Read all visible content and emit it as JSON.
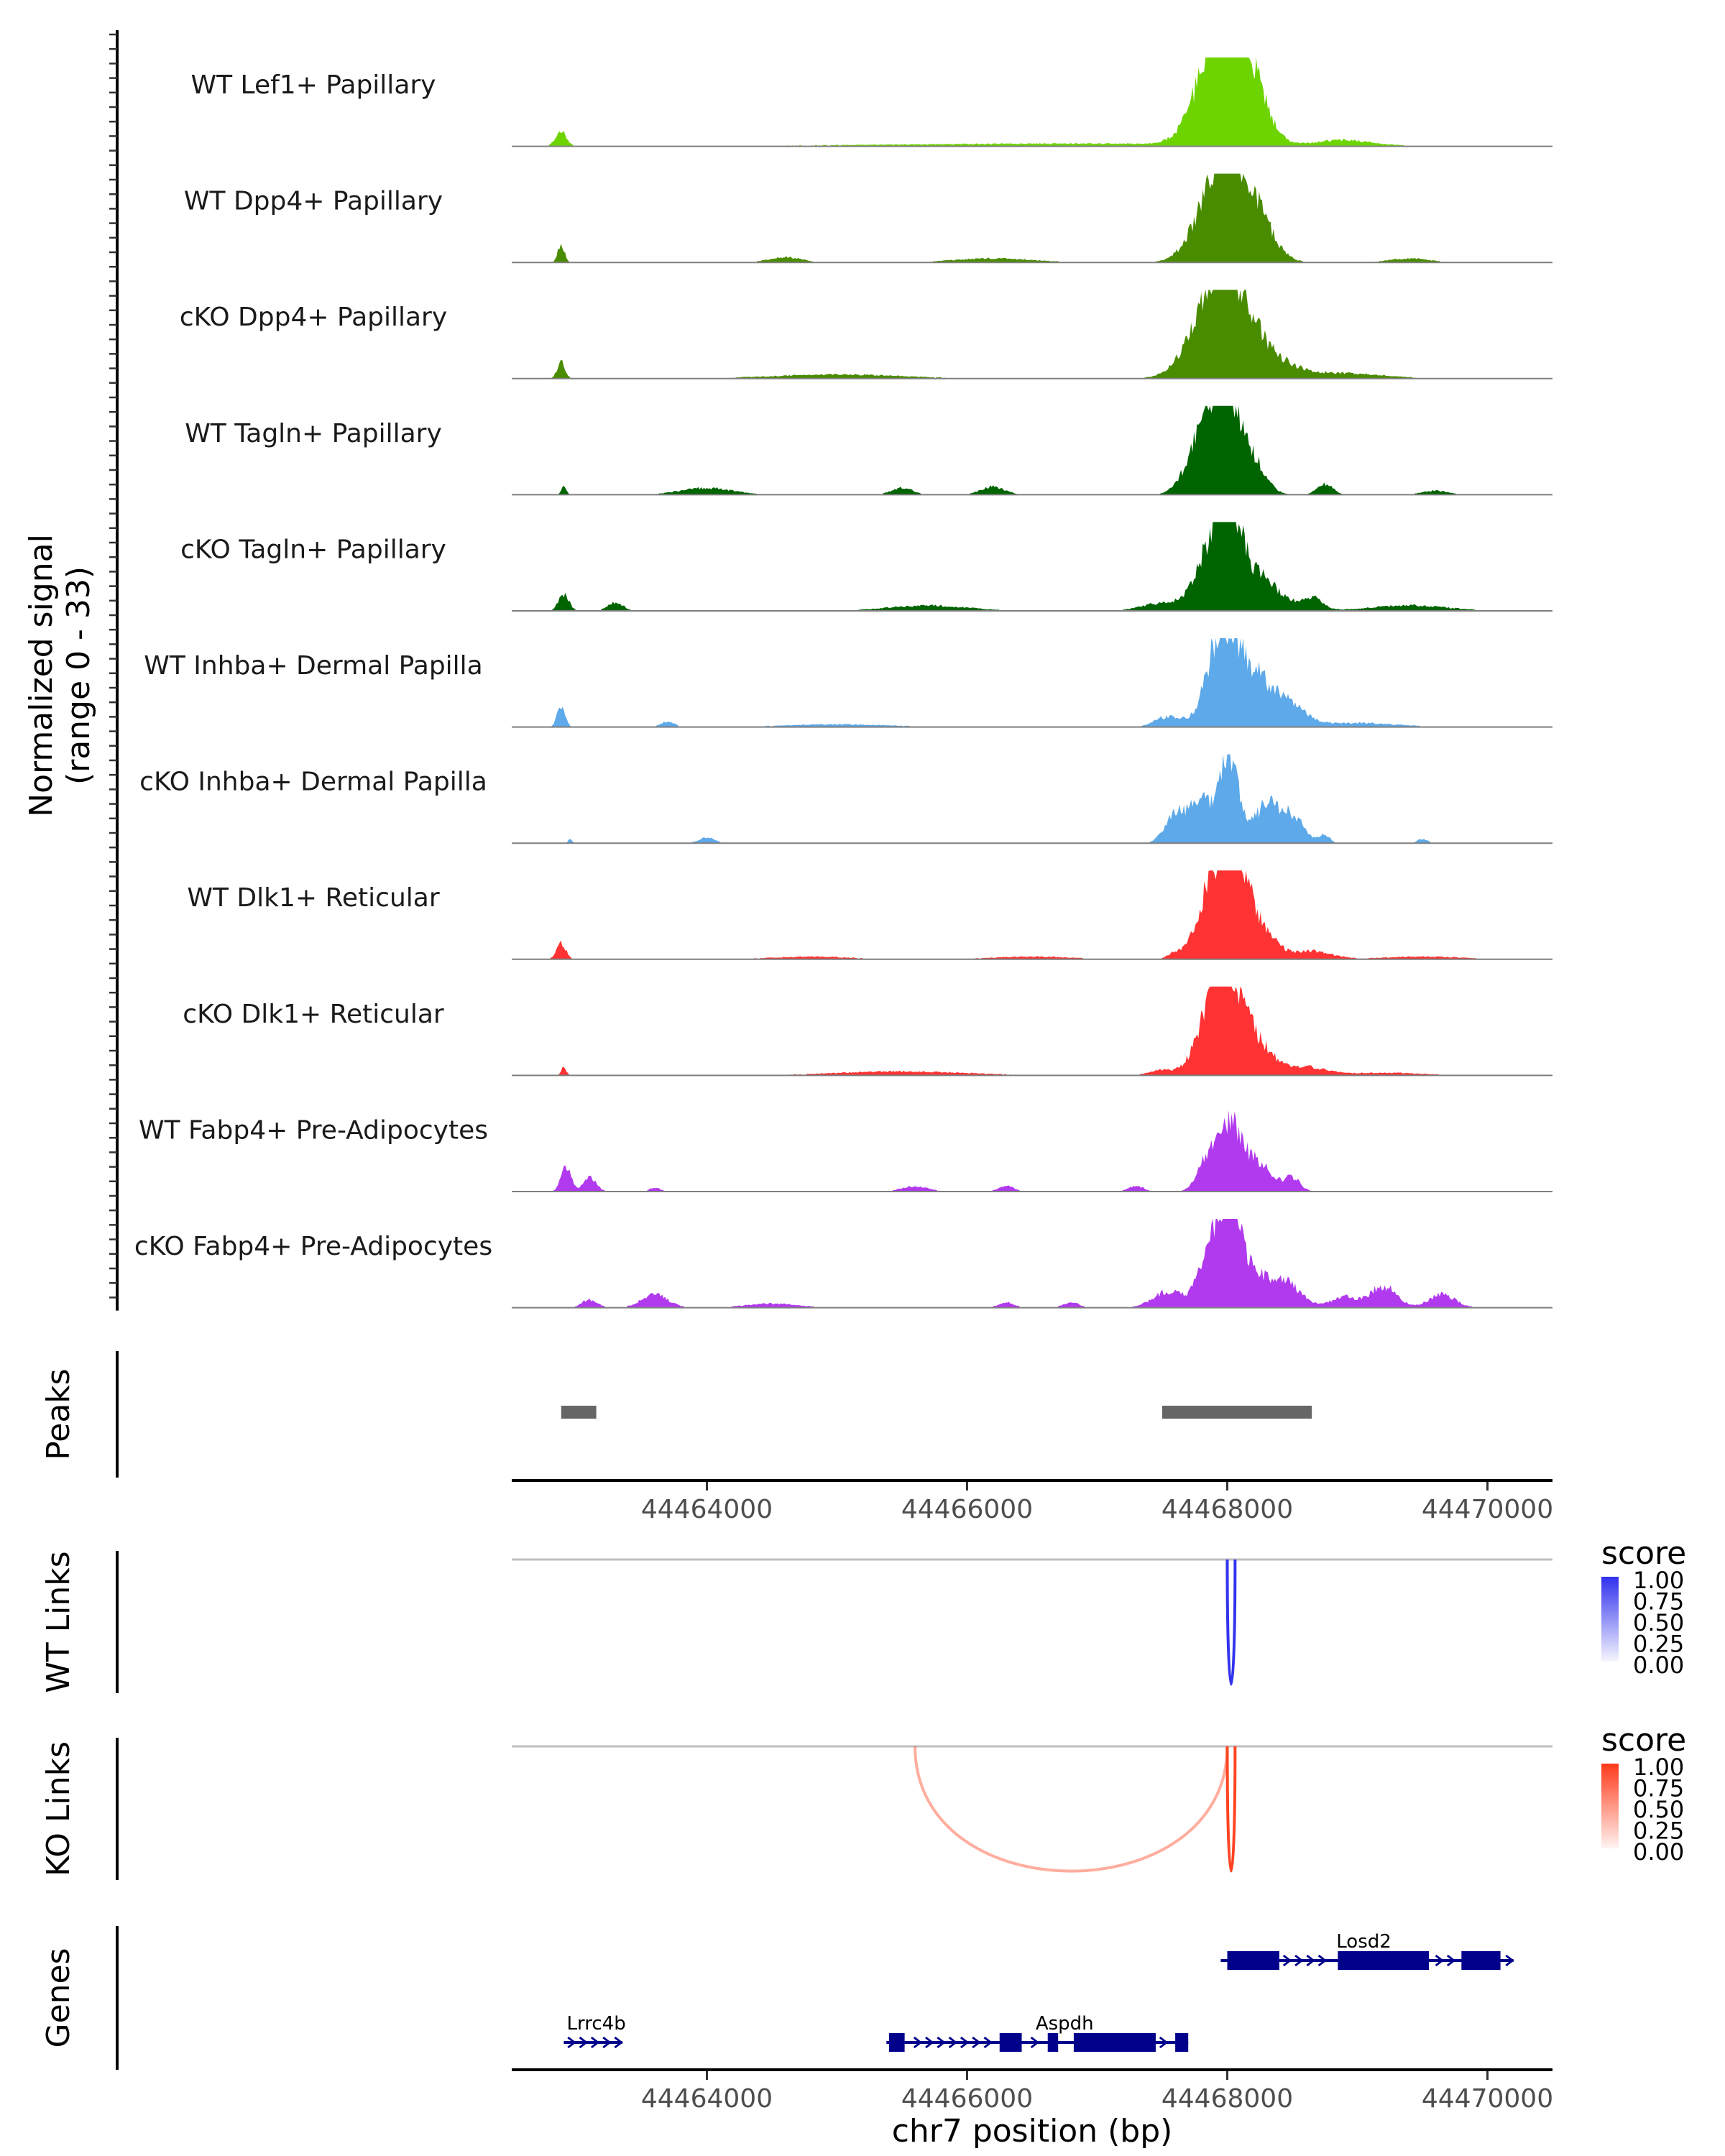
{
  "chart_data": {
    "type": "genome-coverage",
    "ylabel_line1": "Normalized signal",
    "ylabel_line2": "(range 0 - 33)",
    "ylim": [
      0,
      33
    ],
    "xlabel": "chr7 position (bp)",
    "xlim": [
      44462500,
      44470500
    ],
    "xticks": [
      44464000,
      44466000,
      44468000,
      44470000
    ],
    "xtick_labels": [
      "44464000",
      "44466000",
      "44468000",
      "44470000"
    ],
    "tracks": [
      {
        "label": "WT Lef1+ Papillary",
        "color": "#6DD400",
        "peaks": [
          [
            44467920,
            33,
            160
          ],
          [
            44468080,
            26,
            130
          ],
          [
            44468230,
            9,
            120
          ],
          [
            44462880,
            6,
            40
          ],
          [
            44468900,
            2,
            200
          ],
          [
            44466800,
            1,
            1500
          ]
        ]
      },
      {
        "label": "WT Dpp4+ Papillary",
        "color": "#4A8C00",
        "peaks": [
          [
            44468030,
            33,
            150
          ],
          [
            44467860,
            14,
            150
          ],
          [
            44468250,
            10,
            130
          ],
          [
            44462880,
            7,
            25
          ],
          [
            44464600,
            2,
            120
          ],
          [
            44466200,
            1.5,
            300
          ],
          [
            44469400,
            1.5,
            150
          ]
        ]
      },
      {
        "label": "cKO Dpp4+ Papillary",
        "color": "#4A8C00",
        "peaks": [
          [
            44468000,
            33,
            170
          ],
          [
            44467820,
            12,
            170
          ],
          [
            44468300,
            7,
            200
          ],
          [
            44462880,
            6,
            30
          ],
          [
            44468900,
            2,
            300
          ],
          [
            44465000,
            1.5,
            500
          ]
        ]
      },
      {
        "label": "WT Tagln+ Papillary",
        "color": "#006400",
        "peaks": [
          [
            44468000,
            33,
            110
          ],
          [
            44467820,
            22,
            120
          ],
          [
            44468200,
            10,
            100
          ],
          [
            44468750,
            4,
            60
          ],
          [
            44466200,
            3,
            90
          ],
          [
            44464000,
            2.5,
            200
          ],
          [
            44465500,
            2.5,
            80
          ],
          [
            44462900,
            3,
            20
          ],
          [
            44469600,
            1.5,
            100
          ]
        ]
      },
      {
        "label": "cKO Tagln+ Papillary",
        "color": "#006400",
        "peaks": [
          [
            44468010,
            33,
            100
          ],
          [
            44467870,
            18,
            120
          ],
          [
            44468250,
            12,
            150
          ],
          [
            44468650,
            5,
            80
          ],
          [
            44462900,
            6,
            40
          ],
          [
            44467500,
            3,
            150
          ],
          [
            44465700,
            2,
            300
          ],
          [
            44463300,
            3,
            60
          ],
          [
            44469400,
            2,
            300
          ]
        ]
      },
      {
        "label": "WT Inhba+ Dermal Papilla",
        "color": "#5DA9E9",
        "peaks": [
          [
            44467950,
            30,
            110
          ],
          [
            44468150,
            20,
            150
          ],
          [
            44468450,
            8,
            140
          ],
          [
            44467550,
            4,
            100
          ],
          [
            44462880,
            8,
            30
          ],
          [
            44463700,
            2,
            50
          ],
          [
            44465000,
            1,
            400
          ],
          [
            44469000,
            1.5,
            300
          ]
        ]
      },
      {
        "label": "cKO Inhba+ Dermal Papilla",
        "color": "#5DA9E9",
        "peaks": [
          [
            44468020,
            33,
            70
          ],
          [
            44467800,
            16,
            90
          ],
          [
            44468300,
            14,
            90
          ],
          [
            44468500,
            10,
            90
          ],
          [
            44467600,
            10,
            80
          ],
          [
            44468750,
            3,
            40
          ],
          [
            44464000,
            2,
            60
          ],
          [
            44469500,
            1.5,
            40
          ],
          [
            44462950,
            1.5,
            15
          ]
        ]
      },
      {
        "label": "WT Dlk1+ Reticular",
        "color": "#FF3333",
        "peaks": [
          [
            44468030,
            33,
            110
          ],
          [
            44467870,
            20,
            110
          ],
          [
            44468220,
            12,
            130
          ],
          [
            44468650,
            3,
            150
          ],
          [
            44462880,
            6,
            35
          ],
          [
            44467600,
            2,
            60
          ],
          [
            44464800,
            1,
            300
          ],
          [
            44466500,
            1,
            300
          ],
          [
            44469500,
            1,
            300
          ]
        ]
      },
      {
        "label": "cKO Dlk1+ Reticular",
        "color": "#FF3333",
        "peaks": [
          [
            44468010,
            33,
            110
          ],
          [
            44467860,
            18,
            110
          ],
          [
            44468230,
            11,
            120
          ],
          [
            44468600,
            3,
            150
          ],
          [
            44462900,
            3,
            20
          ],
          [
            44467500,
            2,
            100
          ],
          [
            44465500,
            1.5,
            500
          ],
          [
            44469200,
            1,
            300
          ]
        ]
      },
      {
        "label": "WT Fabp4+ Pre-Adipocytes",
        "color": "#B23AEE",
        "peaks": [
          [
            44468030,
            24,
            90
          ],
          [
            44467860,
            12,
            80
          ],
          [
            44468250,
            10,
            100
          ],
          [
            44468500,
            5,
            60
          ],
          [
            44462920,
            9,
            40
          ],
          [
            44463100,
            5,
            50
          ],
          [
            44465600,
            2,
            100
          ],
          [
            44466300,
            2,
            60
          ],
          [
            44467300,
            2,
            60
          ],
          [
            44463600,
            1.5,
            40
          ]
        ]
      },
      {
        "label": "cKO Fabp4+ Pre-Adipocytes",
        "color": "#B23AEE",
        "peaks": [
          [
            44468020,
            33,
            80
          ],
          [
            44467880,
            22,
            90
          ],
          [
            44468200,
            12,
            110
          ],
          [
            44468450,
            9,
            120
          ],
          [
            44467550,
            6,
            120
          ],
          [
            44469200,
            8,
            100
          ],
          [
            44469650,
            5,
            100
          ],
          [
            44463600,
            5,
            100
          ],
          [
            44463100,
            3,
            60
          ],
          [
            44466300,
            2,
            60
          ],
          [
            44466800,
            2,
            60
          ],
          [
            44468900,
            4,
            100
          ],
          [
            44464500,
            1.5,
            200
          ]
        ]
      }
    ],
    "peaks_track": {
      "label": "Peaks",
      "color": "#666666",
      "regions": [
        [
          44462880,
          44463150
        ],
        [
          44467500,
          44468650
        ]
      ]
    },
    "links": [
      {
        "label": "WT Links",
        "color": "#3333EE",
        "legend_low": "#F6F6FE",
        "legend_high": "#3030EE",
        "arcs": [
          {
            "start": 44468000,
            "end": 44468060,
            "score": 1.0
          }
        ]
      },
      {
        "label": "KO Links",
        "color": "#FF4422",
        "legend_low": "#FFF4F2",
        "legend_high": "#FF3A1A",
        "arcs": [
          {
            "start": 44468000,
            "end": 44468060,
            "score": 1.0
          },
          {
            "start": 44465600,
            "end": 44468000,
            "score": 0.25
          }
        ]
      }
    ],
    "legend": {
      "title": "score",
      "ticks": [
        "1.00",
        "0.75",
        "0.50",
        "0.25",
        "0.00"
      ]
    },
    "genes_track": {
      "label": "Genes",
      "color": "#00008B",
      "genes": [
        {
          "name": "Losd2",
          "strand": "+",
          "row": 0,
          "start": 44467950,
          "end": 44470200,
          "exons": [
            [
              44468000,
              44468400
            ],
            [
              44468850,
              44469550
            ],
            [
              44469800,
              44470100
            ]
          ]
        },
        {
          "name": "Lrrc4b",
          "strand": "+",
          "row": 1,
          "start": 44462900,
          "end": 44463350,
          "exons": []
        },
        {
          "name": "Aspdh",
          "strand": "+",
          "row": 1,
          "start": 44465380,
          "end": 44467700,
          "exons": [
            [
              44465400,
              44465520
            ],
            [
              44466250,
              44466420
            ],
            [
              44466620,
              44466700
            ],
            [
              44466820,
              44467450
            ],
            [
              44467600,
              44467700
            ]
          ]
        }
      ]
    }
  }
}
